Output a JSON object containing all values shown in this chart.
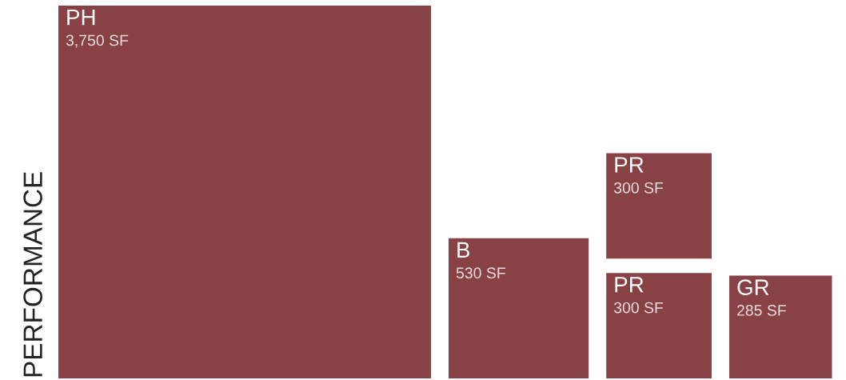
{
  "chart_data": {
    "type": "other",
    "ylabel": "PERFORMANCE",
    "categories": [
      "PH",
      "B",
      "PR",
      "PR",
      "GR"
    ],
    "values": [
      3750,
      530,
      300,
      300,
      285
    ],
    "value_labels": [
      "3,750 SF",
      "530 SF",
      "300 SF",
      "300 SF",
      "285 SF"
    ],
    "color": "#884246"
  }
}
